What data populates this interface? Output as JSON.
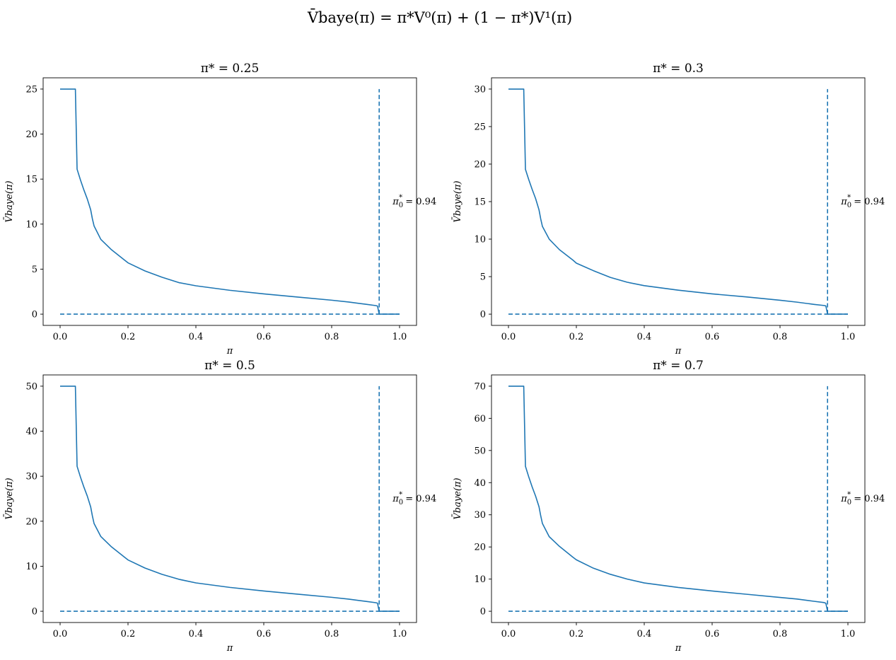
{
  "figure": {
    "suptitle": "V̄baye(π) = π*V⁰(π) + (1 − π*)V¹(π)",
    "line_color": "#1f77b4"
  },
  "chart_data": [
    {
      "type": "line",
      "title": "π* = 0.25",
      "xlabel": "π",
      "ylabel": "V̄baye(π)",
      "xlim": [
        -0.05,
        1.05
      ],
      "ylim": [
        -1.25,
        26.25
      ],
      "xticks": [
        0.0,
        0.2,
        0.4,
        0.6,
        0.8,
        1.0
      ],
      "xtick_labels": [
        "0.0",
        "0.2",
        "0.4",
        "0.6",
        "0.8",
        "1.0"
      ],
      "yticks": [
        0,
        5,
        10,
        15,
        20,
        25
      ],
      "ytick_labels": [
        "0",
        "5",
        "10",
        "15",
        "20",
        "25"
      ],
      "grid": false,
      "series": [
        {
          "style": "solid",
          "x": [
            0.0,
            0.045,
            0.05,
            0.06,
            0.07,
            0.08,
            0.09,
            0.095,
            0.1,
            0.12,
            0.15,
            0.19,
            0.2,
            0.25,
            0.3,
            0.35,
            0.4,
            0.5,
            0.6,
            0.7,
            0.8,
            0.85,
            0.9,
            0.93,
            0.935,
            0.94,
            1.0
          ],
          "y": [
            25.0,
            25.0,
            16.1,
            14.9,
            13.8,
            12.8,
            11.6,
            10.6,
            9.8,
            8.3,
            7.2,
            6.0,
            5.7,
            4.8,
            4.1,
            3.5,
            3.15,
            2.65,
            2.25,
            1.9,
            1.55,
            1.35,
            1.1,
            0.95,
            0.9,
            0.0,
            0.0
          ]
        },
        {
          "style": "dashed",
          "x": [
            0.0,
            1.0
          ],
          "y": [
            0,
            0
          ]
        },
        {
          "style": "dashed",
          "x": [
            0.94,
            0.94
          ],
          "y": [
            0,
            25.0
          ]
        }
      ],
      "annotation": {
        "text_main": "π",
        "text_sub": "0",
        "text_sup": "*",
        "text_eq": " = 0.94",
        "x": 0.99,
        "y": 12.5
      }
    },
    {
      "type": "line",
      "title": "π* = 0.3",
      "xlabel": "π",
      "ylabel": "V̄baye(π)",
      "xlim": [
        -0.05,
        1.05
      ],
      "ylim": [
        -1.5,
        31.5
      ],
      "xticks": [
        0.0,
        0.2,
        0.4,
        0.6,
        0.8,
        1.0
      ],
      "xtick_labels": [
        "0.0",
        "0.2",
        "0.4",
        "0.6",
        "0.8",
        "1.0"
      ],
      "yticks": [
        0,
        5,
        10,
        15,
        20,
        25,
        30
      ],
      "ytick_labels": [
        "0",
        "5",
        "10",
        "15",
        "20",
        "25",
        "30"
      ],
      "grid": false,
      "series": [
        {
          "style": "solid",
          "x": [
            0.0,
            0.045,
            0.05,
            0.06,
            0.07,
            0.08,
            0.09,
            0.095,
            0.1,
            0.12,
            0.15,
            0.19,
            0.2,
            0.25,
            0.3,
            0.35,
            0.4,
            0.5,
            0.6,
            0.7,
            0.8,
            0.85,
            0.9,
            0.93,
            0.935,
            0.94,
            1.0
          ],
          "y": [
            30.0,
            30.0,
            19.3,
            17.9,
            16.6,
            15.4,
            13.9,
            12.7,
            11.7,
            10.0,
            8.6,
            7.2,
            6.8,
            5.8,
            4.9,
            4.25,
            3.8,
            3.2,
            2.7,
            2.3,
            1.85,
            1.6,
            1.3,
            1.15,
            1.1,
            0.0,
            0.0
          ]
        },
        {
          "style": "dashed",
          "x": [
            0.0,
            1.0
          ],
          "y": [
            0,
            0
          ]
        },
        {
          "style": "dashed",
          "x": [
            0.94,
            0.94
          ],
          "y": [
            0,
            30.0
          ]
        }
      ],
      "annotation": {
        "text_main": "π",
        "text_sub": "0",
        "text_sup": "*",
        "text_eq": " = 0.94",
        "x": 0.99,
        "y": 15.0
      }
    },
    {
      "type": "line",
      "title": "π* = 0.5",
      "xlabel": "π",
      "ylabel": "V̄baye(π)",
      "xlim": [
        -0.05,
        1.05
      ],
      "ylim": [
        -2.5,
        52.5
      ],
      "xticks": [
        0.0,
        0.2,
        0.4,
        0.6,
        0.8,
        1.0
      ],
      "xtick_labels": [
        "0.0",
        "0.2",
        "0.4",
        "0.6",
        "0.8",
        "1.0"
      ],
      "yticks": [
        0,
        10,
        20,
        30,
        40,
        50
      ],
      "ytick_labels": [
        "0",
        "10",
        "20",
        "30",
        "40",
        "50"
      ],
      "grid": false,
      "series": [
        {
          "style": "solid",
          "x": [
            0.0,
            0.045,
            0.05,
            0.06,
            0.07,
            0.08,
            0.09,
            0.095,
            0.1,
            0.12,
            0.15,
            0.19,
            0.2,
            0.25,
            0.3,
            0.35,
            0.4,
            0.5,
            0.6,
            0.7,
            0.8,
            0.85,
            0.9,
            0.93,
            0.935,
            0.94,
            1.0
          ],
          "y": [
            50.0,
            50.0,
            32.2,
            29.8,
            27.6,
            25.6,
            23.2,
            21.2,
            19.5,
            16.6,
            14.4,
            12.0,
            11.4,
            9.6,
            8.2,
            7.1,
            6.3,
            5.3,
            4.5,
            3.8,
            3.1,
            2.7,
            2.2,
            1.9,
            1.8,
            0.0,
            0.0
          ]
        },
        {
          "style": "dashed",
          "x": [
            0.0,
            1.0
          ],
          "y": [
            0,
            0
          ]
        },
        {
          "style": "dashed",
          "x": [
            0.94,
            0.94
          ],
          "y": [
            0,
            50.0
          ]
        }
      ],
      "annotation": {
        "text_main": "π",
        "text_sub": "0",
        "text_sup": "*",
        "text_eq": " = 0.94",
        "x": 0.99,
        "y": 25.0
      }
    },
    {
      "type": "line",
      "title": "π* = 0.7",
      "xlabel": "π",
      "ylabel": "V̄baye(π)",
      "xlim": [
        -0.05,
        1.05
      ],
      "ylim": [
        -3.5,
        73.5
      ],
      "xticks": [
        0.0,
        0.2,
        0.4,
        0.6,
        0.8,
        1.0
      ],
      "xtick_labels": [
        "0.0",
        "0.2",
        "0.4",
        "0.6",
        "0.8",
        "1.0"
      ],
      "yticks": [
        0,
        10,
        20,
        30,
        40,
        50,
        60,
        70
      ],
      "ytick_labels": [
        "0",
        "10",
        "20",
        "30",
        "40",
        "50",
        "60",
        "70"
      ],
      "grid": false,
      "series": [
        {
          "style": "solid",
          "x": [
            0.0,
            0.045,
            0.05,
            0.06,
            0.07,
            0.08,
            0.09,
            0.095,
            0.1,
            0.12,
            0.15,
            0.19,
            0.2,
            0.25,
            0.3,
            0.35,
            0.4,
            0.5,
            0.6,
            0.7,
            0.8,
            0.85,
            0.9,
            0.93,
            0.935,
            0.94,
            1.0
          ],
          "y": [
            70.0,
            70.0,
            45.1,
            41.7,
            38.6,
            35.8,
            32.5,
            29.7,
            27.3,
            23.2,
            20.2,
            16.8,
            16.0,
            13.4,
            11.5,
            10.0,
            8.8,
            7.4,
            6.3,
            5.3,
            4.3,
            3.8,
            3.1,
            2.7,
            2.5,
            0.0,
            0.0
          ]
        },
        {
          "style": "dashed",
          "x": [
            0.0,
            1.0
          ],
          "y": [
            0,
            0
          ]
        },
        {
          "style": "dashed",
          "x": [
            0.94,
            0.94
          ],
          "y": [
            0,
            70.0
          ]
        }
      ],
      "annotation": {
        "text_main": "π",
        "text_sub": "0",
        "text_sup": "*",
        "text_eq": " = 0.94",
        "x": 0.99,
        "y": 35.0
      }
    }
  ]
}
